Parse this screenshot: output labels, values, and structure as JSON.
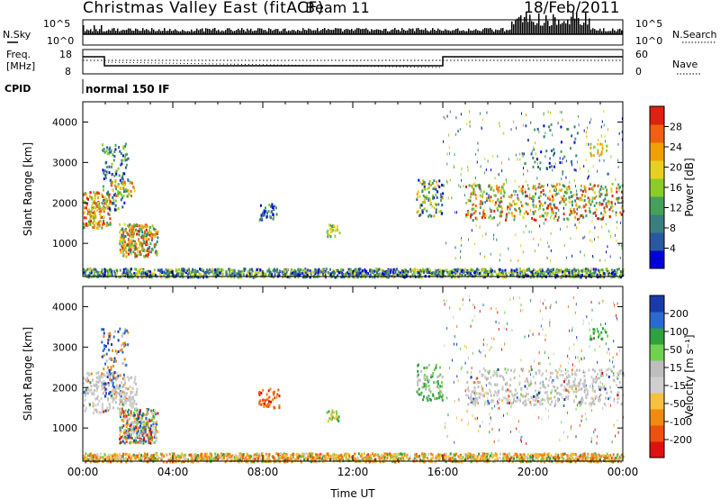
{
  "header": {
    "title": "Christmas Valley East (fitACF)",
    "beam": "Beam 11",
    "date": "18/Feb/2011"
  },
  "panels": {
    "nsky_label": "N.Sky",
    "nsearch_label": "N.Search",
    "count_ticks": [
      "10^5",
      "10^0"
    ],
    "freq_label_1": "Freq.",
    "freq_label_2": "[MHz]",
    "freq_ticks": [
      "18",
      "8"
    ],
    "nave_label": "Nave",
    "nave_ticks": [
      "60",
      "0"
    ],
    "cpid_label": "CPID",
    "cpid_value": "normal 150 IF"
  },
  "colors": {
    "power_scale": [
      "#0000d8",
      "#2a58a0",
      "#3a7f7f",
      "#46a05a",
      "#8ccc2a",
      "#e8d020",
      "#f0a000",
      "#f06010",
      "#e02010"
    ],
    "velocity_scale": [
      "#1a3aa8",
      "#2a6ad0",
      "#30a040",
      "#70d050",
      "#bebebe",
      "#cfcfcf",
      "#f6c040",
      "#f08a10",
      "#ee5010",
      "#e01010"
    ]
  },
  "chart_data": [
    {
      "type": "heatmap",
      "name": "power-panel",
      "xlabel": "",
      "ylabel": "Slant Range [km]",
      "ylim": [
        180,
        4500
      ],
      "xlim_hours": [
        0,
        24
      ],
      "y_ticks": [
        1000,
        2000,
        3000,
        4000
      ],
      "colorbar_label": "Power [dB]",
      "colorbar_ticks": [
        "28",
        "24",
        "20",
        "16",
        "12",
        "8",
        "4"
      ]
    },
    {
      "type": "heatmap",
      "name": "velocity-panel",
      "xlabel": "Time UT",
      "ylabel": "Slant Range [km]",
      "ylim": [
        180,
        4500
      ],
      "xlim_hours": [
        0,
        24
      ],
      "y_ticks": [
        1000,
        2000,
        3000,
        4000
      ],
      "x_ticks": [
        "00:00",
        "04:00",
        "08:00",
        "12:00",
        "16:00",
        "20:00",
        "00:00"
      ],
      "colorbar_label": "Velocity [m s⁻¹]",
      "colorbar_ticks": [
        "200",
        "100",
        "50",
        "15",
        "-15",
        "-50",
        "-100",
        "-200"
      ]
    }
  ]
}
